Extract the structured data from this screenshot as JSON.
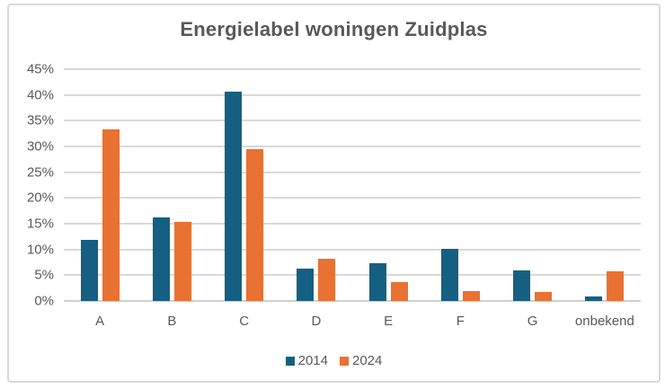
{
  "chart_data": {
    "type": "bar",
    "title": "Energielabel woningen Zuidplas",
    "categories": [
      "A",
      "B",
      "C",
      "D",
      "E",
      "F",
      "G",
      "onbekend"
    ],
    "series": [
      {
        "name": "2014",
        "color": "#156082",
        "values": [
          11.8,
          16.2,
          40.7,
          6.3,
          7.4,
          10.2,
          5.9,
          0.9
        ]
      },
      {
        "name": "2024",
        "color": "#e97132",
        "values": [
          33.3,
          15.4,
          29.4,
          8.2,
          3.6,
          1.9,
          1.7,
          5.8
        ]
      }
    ],
    "xlabel": "",
    "ylabel": "",
    "ylim": [
      0,
      45
    ],
    "ytick_step": 5,
    "ytick_labels": [
      "0%",
      "5%",
      "10%",
      "15%",
      "20%",
      "25%",
      "30%",
      "35%",
      "40%",
      "45%"
    ],
    "grid": "horizontal",
    "legend_position": "bottom",
    "legend_entries": [
      "2014",
      "2024"
    ],
    "colors": {
      "series_2014": "#156082",
      "series_2024": "#e97132",
      "text": "#595959",
      "gridline": "#d9d9d9",
      "frame_border": "#d9d9d9",
      "background": "#ffffff"
    }
  }
}
